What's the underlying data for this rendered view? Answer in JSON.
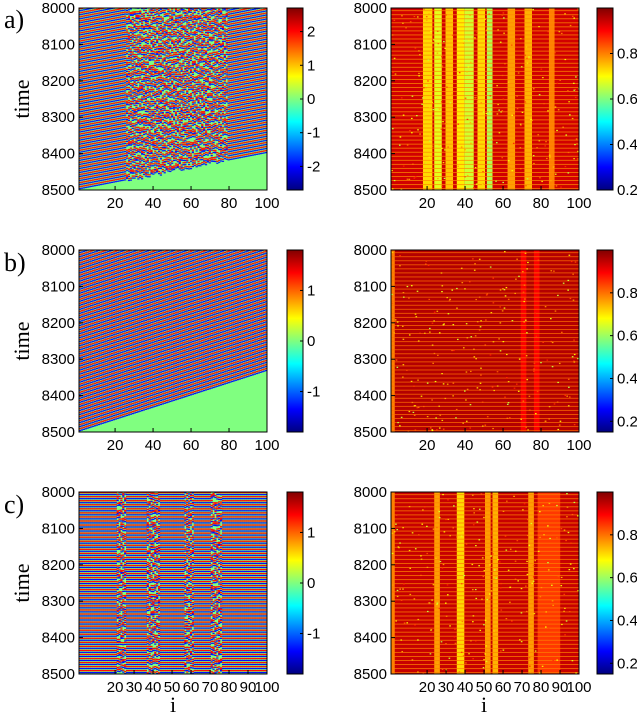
{
  "figure": {
    "x_axis_label": "i",
    "y_axis_label": "time"
  },
  "chart_data": [
    {
      "type": "heatmap",
      "panel": "a)",
      "column": "left",
      "ylabel": "time",
      "xlabel": "",
      "x_range": [
        1,
        100
      ],
      "y_range": [
        8000,
        8500
      ],
      "y_reversed": true,
      "x_ticks": [
        20,
        40,
        60,
        80,
        100
      ],
      "y_ticks": [
        8000,
        8100,
        8200,
        8300,
        8400,
        8500
      ],
      "colorbar": {
        "range": [
          -2.7,
          2.7
        ],
        "ticks": [
          -2,
          -1,
          0,
          1,
          2
        ],
        "colormap": "jet"
      },
      "pattern": {
        "kind": "traveling-waves",
        "stripes": 45,
        "slope": 0.03,
        "amplitude": 0.7,
        "disorder_cols": [
          25,
          78
        ]
      }
    },
    {
      "type": "heatmap",
      "panel": "a)",
      "column": "right",
      "ylabel": "",
      "xlabel": "",
      "x_range": [
        1,
        100
      ],
      "y_range": [
        8000,
        8500
      ],
      "y_reversed": true,
      "x_ticks": [
        20,
        40,
        60,
        80,
        100
      ],
      "y_ticks": [
        8000,
        8100,
        8200,
        8300,
        8400,
        8500
      ],
      "colorbar": {
        "range": [
          0.2,
          1.0
        ],
        "ticks": [
          0.2,
          0.4,
          0.6,
          0.8
        ],
        "colormap": "jet"
      },
      "pattern": {
        "kind": "order-parameter",
        "stripes": 45,
        "base": 0.92,
        "bands": [
          [
            18,
            22,
            0.66
          ],
          [
            24,
            27,
            0.6
          ],
          [
            30,
            33,
            0.68
          ],
          [
            36,
            39,
            0.64
          ],
          [
            40,
            44,
            0.58
          ],
          [
            47,
            50,
            0.66
          ],
          [
            52,
            54,
            0.55
          ],
          [
            63,
            66,
            0.72
          ],
          [
            72,
            75,
            0.7
          ],
          [
            85,
            87,
            0.75
          ]
        ]
      }
    },
    {
      "type": "heatmap",
      "panel": "b)",
      "column": "left",
      "ylabel": "time",
      "xlabel": "",
      "x_range": [
        1,
        100
      ],
      "y_range": [
        8000,
        8500
      ],
      "y_reversed": true,
      "x_ticks": [
        20,
        40,
        60,
        80,
        100
      ],
      "y_ticks": [
        8000,
        8100,
        8200,
        8300,
        8400,
        8500
      ],
      "colorbar": {
        "range": [
          -1.8,
          1.8
        ],
        "ticks": [
          -1,
          0,
          1
        ],
        "colormap": "jet"
      },
      "pattern": {
        "kind": "traveling-waves",
        "stripes": 45,
        "slope": 0.05,
        "amplitude": 0.72,
        "disorder_cols": []
      }
    },
    {
      "type": "heatmap",
      "panel": "b)",
      "column": "right",
      "ylabel": "",
      "xlabel": "",
      "x_range": [
        1,
        100
      ],
      "y_range": [
        8000,
        8500
      ],
      "y_reversed": true,
      "x_ticks": [
        20,
        40,
        60,
        80,
        100
      ],
      "y_ticks": [
        8000,
        8100,
        8200,
        8300,
        8400,
        8500
      ],
      "colorbar": {
        "range": [
          0.15,
          1.0
        ],
        "ticks": [
          0.2,
          0.4,
          0.6,
          0.8
        ],
        "colormap": "jet"
      },
      "pattern": {
        "kind": "order-parameter",
        "stripes": 45,
        "base": 0.95,
        "bands": [
          [
            1,
            2,
            0.75
          ],
          [
            70,
            72,
            0.88
          ],
          [
            77,
            79,
            0.88
          ]
        ]
      }
    },
    {
      "type": "heatmap",
      "panel": "c)",
      "column": "left",
      "ylabel": "time",
      "xlabel": "i",
      "x_range": [
        1,
        100
      ],
      "y_range": [
        8000,
        8500
      ],
      "y_reversed": true,
      "x_ticks": [
        20,
        30,
        40,
        50,
        60,
        70,
        80,
        90,
        100
      ],
      "y_ticks": [
        8000,
        8100,
        8200,
        8300,
        8400,
        8500
      ],
      "colorbar": {
        "range": [
          -1.8,
          1.8
        ],
        "ticks": [
          -1,
          0,
          1
        ],
        "colormap": "jet"
      },
      "pattern": {
        "kind": "traveling-waves",
        "stripes": 45,
        "slope": 0.0,
        "amplitude": 0.72,
        "disorder_cols": [
          20,
          24,
          36,
          42,
          56,
          60,
          70,
          75
        ]
      }
    },
    {
      "type": "heatmap",
      "panel": "c)",
      "column": "right",
      "ylabel": "",
      "xlabel": "i",
      "x_range": [
        1,
        100
      ],
      "y_range": [
        8000,
        8500
      ],
      "y_reversed": true,
      "x_ticks": [
        20,
        30,
        40,
        50,
        60,
        70,
        80,
        90,
        100
      ],
      "y_ticks": [
        8000,
        8100,
        8200,
        8300,
        8400,
        8500
      ],
      "colorbar": {
        "range": [
          0.15,
          1.0
        ],
        "ticks": [
          0.2,
          0.4,
          0.6,
          0.8
        ],
        "colormap": "jet"
      },
      "pattern": {
        "kind": "order-parameter",
        "stripes": 45,
        "base": 0.93,
        "bands": [
          [
            1,
            2,
            0.75
          ],
          [
            24,
            26,
            0.72
          ],
          [
            36,
            39,
            0.66
          ],
          [
            51,
            53,
            0.72
          ],
          [
            55,
            57,
            0.7
          ],
          [
            74,
            76,
            0.72
          ],
          [
            79,
            90,
            0.82
          ]
        ]
      }
    }
  ]
}
